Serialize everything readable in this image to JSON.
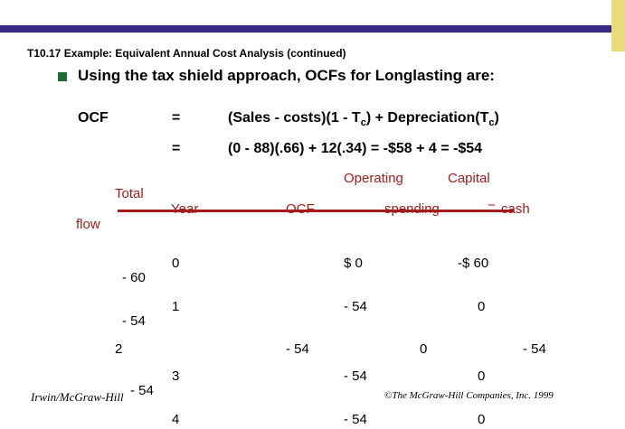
{
  "colors": {
    "top_bar": "#3b2a85",
    "side_bar": "#e6dc7a",
    "bullet": "#1f6b3a",
    "header_red": "#a31c1c"
  },
  "slide": {
    "heading": "T10.17 Example: Equivalent Annual Cost Analysis (continued)",
    "bullet_icon": "square-bullet-icon",
    "bullet_text": "Using the tax shield approach, OCFs for Longlasting are:"
  },
  "equations": {
    "ocf_label": "OCF",
    "eq1_sign": "=",
    "eq1_a": "(Sales - costs)(1 - T",
    "eq1_a_sub": "c",
    "eq1_b": ") + Depreciation(T",
    "eq1_b_sub": "c",
    "eq1_c": ")",
    "eq2_sign": "=",
    "eq2": "(0 - 88)(.66) + 12(.34) = -$58 + 4 = -$54"
  },
  "table": {
    "headers": {
      "operating": "Operating",
      "capital": "Capital",
      "total": "Total",
      "flow": "flow",
      "year": "Year",
      "ocf": "OCF",
      "spending": "spending",
      "dash": "−",
      "cash": "cash"
    },
    "cells": {
      "r0_year": "0",
      "r0_ocf": "$ 0",
      "r0_cap": "-$ 60",
      "r0_total": "- 60",
      "r1_year": "1",
      "r1_ocf": "- 54",
      "r1_cap": "0",
      "r1_total": "- 54",
      "r2_year": "2",
      "r2_ocf": "- 54",
      "r2_cap": "0",
      "r2_total": "- 54",
      "r3_year": "3",
      "r3_ocf": "- 54",
      "r3_cap": "0",
      "r3_total": "- 54",
      "r4_year": "4",
      "r4_ocf": "- 54",
      "r4_cap": "0"
    }
  },
  "footer": {
    "left": "Irwin/McGraw-Hill",
    "right": "©The McGraw-Hill Companies, Inc. 1999"
  }
}
